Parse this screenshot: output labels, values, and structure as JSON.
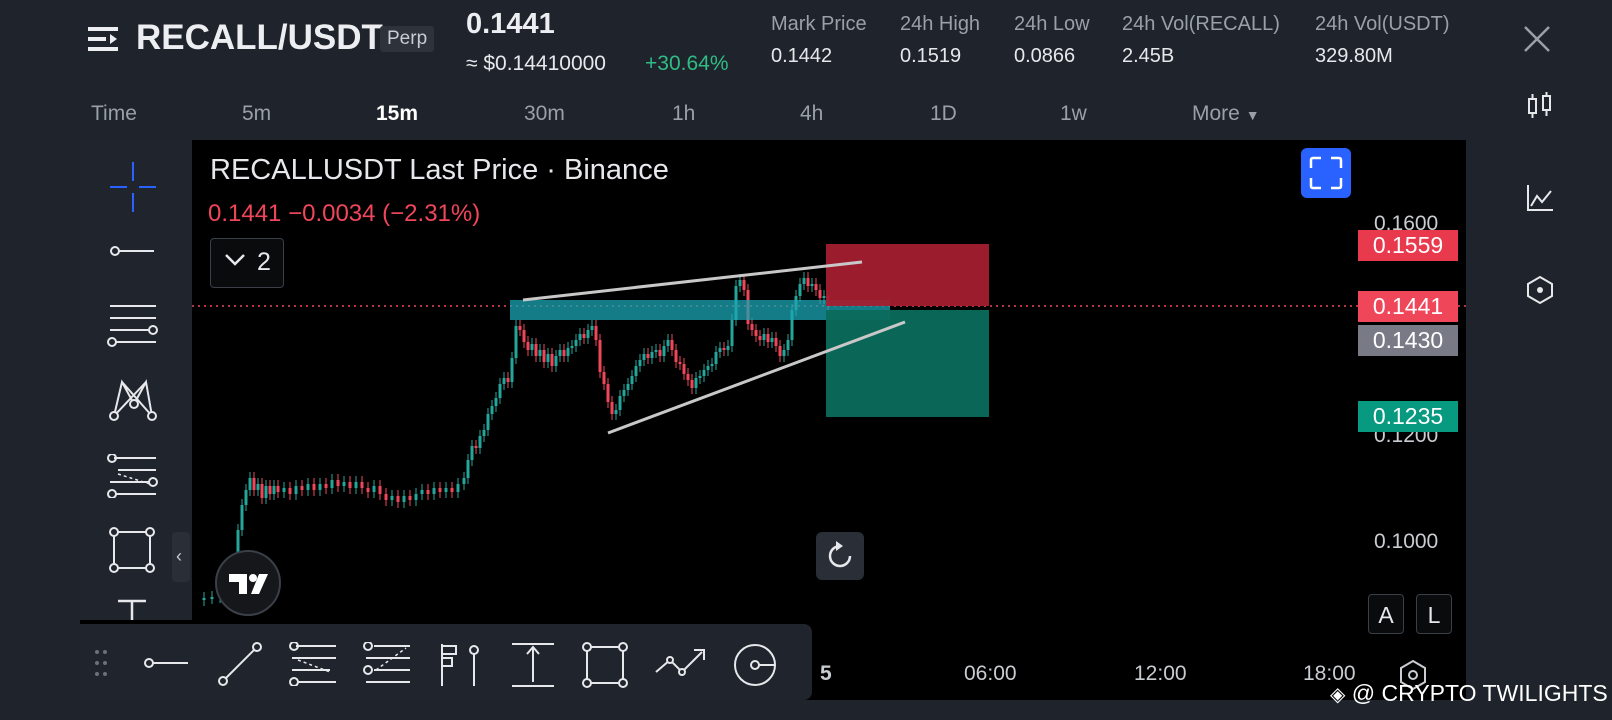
{
  "header": {
    "pair": "RECALL/USDT",
    "contract_type": "Perp",
    "last_price": "0.1441",
    "usd_price": "≈ $0.14410000",
    "change_pct": "+30.64%",
    "stats": [
      {
        "label": "Mark Price",
        "value": "0.1442"
      },
      {
        "label": "24h High",
        "value": "0.1519"
      },
      {
        "label": "24h Low",
        "value": "0.0866"
      },
      {
        "label": "24h Vol(RECALL)",
        "value": "2.45B"
      },
      {
        "label": "24h Vol(USDT)",
        "value": "329.80M"
      }
    ]
  },
  "timeframes": {
    "items": [
      "Time",
      "5m",
      "15m",
      "30m",
      "1h",
      "4h",
      "1D",
      "1w",
      "More"
    ],
    "active": "15m"
  },
  "chart": {
    "title": "RECALLUSDT Last Price · Binance",
    "ohlc": "0.1441  −0.0034 (−2.31%)",
    "indicator_count": "2",
    "price_axis": [
      "0.1600",
      "0.1200",
      "0.1000"
    ],
    "price_tags": {
      "stop": "0.1559",
      "last": "0.1441",
      "entry": "0.1430",
      "target": "0.1235"
    },
    "time_axis": [
      "5",
      "06:00",
      "12:00",
      "18:00"
    ],
    "scale_buttons": [
      "A",
      "L"
    ]
  },
  "colors": {
    "up": "#26a69a",
    "down": "#f0465a",
    "stop_zone": "#a31f2f",
    "target_zone": "#0b6b5c",
    "accent": "#2962ff"
  },
  "watermark": "@ CRYPTO TWILIGHTS"
}
